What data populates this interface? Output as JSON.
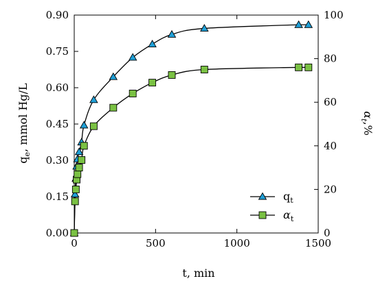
{
  "chart_data": {
    "type": "scatter",
    "xlabel": "t, min",
    "ylabel_left": {
      "main": "q",
      "sub": "e",
      "rest": ", mmol Hg/L"
    },
    "ylabel_right": {
      "main": "α",
      "sub": "t",
      "rest": ",%"
    },
    "xlim": [
      0,
      1500
    ],
    "ylim_left": [
      0,
      0.9
    ],
    "ylim_right": [
      0,
      100
    ],
    "x_ticks": [
      0,
      500,
      1000,
      1500
    ],
    "y_left_ticks": [
      "0.00",
      "0.15",
      "0.30",
      "0.45",
      "0.60",
      "0.75",
      "0.90"
    ],
    "y_right_ticks": [
      0,
      20,
      40,
      60,
      80,
      100
    ],
    "grid": false,
    "legend_position": "lower-right",
    "series": [
      {
        "name": "q_t",
        "legend_main": "q",
        "legend_sub": "t",
        "axis": "left",
        "marker": "triangle",
        "color": "#1f9fd6",
        "x": [
          0,
          5,
          10,
          15,
          20,
          30,
          45,
          60,
          120,
          240,
          360,
          480,
          600,
          800,
          1380,
          1440
        ],
        "y": [
          0.0,
          0.16,
          0.225,
          0.275,
          0.305,
          0.335,
          0.375,
          0.445,
          0.55,
          0.645,
          0.725,
          0.78,
          0.82,
          0.845,
          0.86,
          0.86
        ]
      },
      {
        "name": "α_t",
        "legend_main": "α",
        "legend_sub": "t",
        "axis": "right",
        "marker": "square",
        "color": "#7ac143",
        "x": [
          0,
          5,
          10,
          15,
          20,
          30,
          45,
          60,
          120,
          240,
          360,
          480,
          600,
          800,
          1380,
          1440
        ],
        "y": [
          0.0,
          14.5,
          20.0,
          24.5,
          27.0,
          30.0,
          33.5,
          40.0,
          49.0,
          57.5,
          64.0,
          69.0,
          72.5,
          75.0,
          76.0,
          76.0
        ]
      }
    ]
  }
}
